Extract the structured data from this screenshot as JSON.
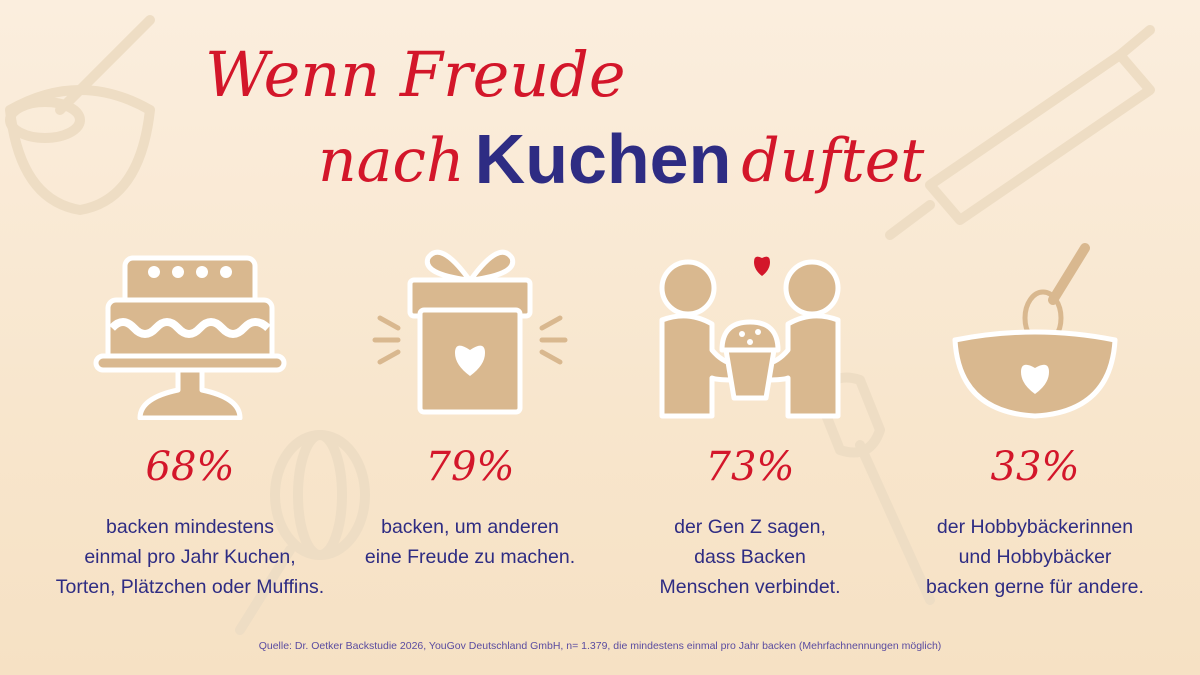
{
  "title": {
    "line1": "Wenn Freude",
    "line2_pre": "nach",
    "line2_keyword": "Kuchen",
    "line2_post": "duftet"
  },
  "stats": [
    {
      "icon": "cake-icon",
      "value": "68%",
      "text": "backen mindestens\neinmal pro Jahr  Kuchen,\nTorten, Plätzchen oder Muffins."
    },
    {
      "icon": "gift-icon",
      "value": "79%",
      "text": "backen, um anderen\neine Freude zu machen."
    },
    {
      "icon": "people-cupcake-icon",
      "value": "73%",
      "text": "der Gen Z sagen,\ndass Backen\nMenschen verbindet."
    },
    {
      "icon": "mixing-bowl-icon",
      "value": "33%",
      "text": "der Hobbybäckerinnen\nund Hobbybäcker\nbacken gerne für andere."
    }
  ],
  "source": "Quelle: Dr. Oetker Backstudie 2026, YouGov Deutschland GmbH, n= 1.379, die mindestens einmal pro Jahr backen (Mehrfachnennungen möglich)",
  "colors": {
    "title_red": "#d3162a",
    "title_blue": "#2e2c83",
    "icon_fill": "#d9b88f",
    "background": "#f8e6cd"
  }
}
